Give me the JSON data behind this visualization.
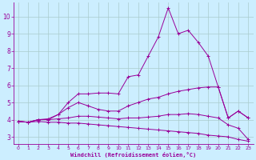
{
  "xlabel": "Windchill (Refroidissement éolien,°C)",
  "bg_color": "#cceeff",
  "grid_color": "#aacccc",
  "line_color": "#990099",
  "xlim": [
    -0.5,
    23.5
  ],
  "ylim": [
    2.6,
    10.8
  ],
  "yticks": [
    3,
    4,
    5,
    6,
    7,
    8,
    9,
    10
  ],
  "xticks": [
    0,
    1,
    2,
    3,
    4,
    5,
    6,
    7,
    8,
    9,
    10,
    11,
    12,
    13,
    14,
    15,
    16,
    17,
    18,
    19,
    20,
    21,
    22,
    23
  ],
  "series": [
    {
      "x": [
        0,
        1,
        2,
        3,
        4,
        5,
        6,
        7,
        8,
        9,
        10,
        11,
        12,
        13,
        14,
        15,
        16,
        17,
        18,
        19,
        20,
        21,
        22,
        23
      ],
      "y": [
        3.9,
        3.85,
        4.0,
        4.05,
        4.3,
        5.0,
        5.5,
        5.5,
        5.55,
        5.55,
        5.5,
        6.5,
        6.6,
        7.7,
        8.8,
        10.5,
        9.0,
        9.2,
        8.5,
        7.7,
        5.9,
        4.1,
        4.5,
        4.1
      ]
    },
    {
      "x": [
        0,
        1,
        2,
        3,
        4,
        5,
        6,
        7,
        8,
        9,
        10,
        11,
        12,
        13,
        14,
        15,
        16,
        17,
        18,
        19,
        20,
        21,
        22,
        23
      ],
      "y": [
        3.9,
        3.85,
        4.0,
        4.0,
        4.3,
        4.7,
        5.0,
        4.8,
        4.6,
        4.5,
        4.5,
        4.8,
        5.0,
        5.2,
        5.3,
        5.5,
        5.65,
        5.75,
        5.85,
        5.9,
        5.9,
        4.1,
        4.5,
        4.1
      ]
    },
    {
      "x": [
        0,
        1,
        2,
        3,
        4,
        5,
        6,
        7,
        8,
        9,
        10,
        11,
        12,
        13,
        14,
        15,
        16,
        17,
        18,
        19,
        20,
        21,
        22,
        23
      ],
      "y": [
        3.9,
        3.85,
        4.0,
        4.0,
        4.05,
        4.1,
        4.2,
        4.2,
        4.15,
        4.1,
        4.05,
        4.1,
        4.1,
        4.15,
        4.2,
        4.3,
        4.3,
        4.35,
        4.3,
        4.2,
        4.1,
        3.7,
        3.5,
        2.85
      ]
    },
    {
      "x": [
        0,
        1,
        2,
        3,
        4,
        5,
        6,
        7,
        8,
        9,
        10,
        11,
        12,
        13,
        14,
        15,
        16,
        17,
        18,
        19,
        20,
        21,
        22,
        23
      ],
      "y": [
        3.9,
        3.85,
        3.9,
        3.85,
        3.85,
        3.8,
        3.8,
        3.75,
        3.7,
        3.65,
        3.6,
        3.55,
        3.5,
        3.45,
        3.4,
        3.35,
        3.3,
        3.25,
        3.2,
        3.1,
        3.05,
        3.0,
        2.85,
        2.75
      ]
    }
  ]
}
